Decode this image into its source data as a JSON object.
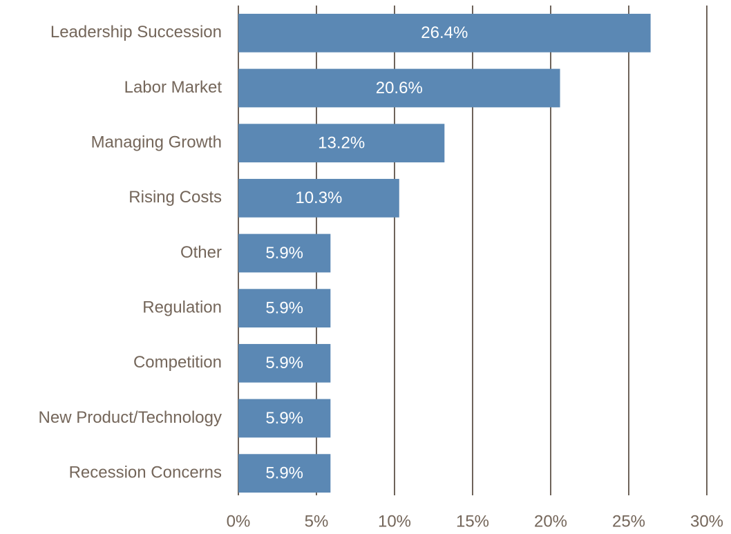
{
  "chart_data": {
    "type": "barh",
    "categories": [
      "Leadership Succession",
      "Labor Market",
      "Managing Growth",
      "Rising Costs",
      "Other",
      "Regulation",
      "Competition",
      "New Product/Technology",
      "Recession Concerns"
    ],
    "values": [
      26.4,
      20.6,
      13.2,
      10.3,
      5.9,
      5.9,
      5.9,
      5.9,
      5.9
    ],
    "value_labels": [
      "26.4%",
      "20.6%",
      "13.2%",
      "10.3%",
      "5.9%",
      "5.9%",
      "5.9%",
      "5.9%",
      "5.9%"
    ],
    "color": "#5b88b4",
    "xlim": [
      0,
      30
    ],
    "xticks": [
      {
        "value": 0,
        "label": "0%"
      },
      {
        "value": 5,
        "label": "5%"
      },
      {
        "value": 10,
        "label": "10%"
      },
      {
        "value": 15,
        "label": "15%"
      },
      {
        "value": 20,
        "label": "20%"
      },
      {
        "value": 25,
        "label": "25%"
      },
      {
        "value": 30,
        "label": "30%"
      }
    ],
    "grid": true
  }
}
